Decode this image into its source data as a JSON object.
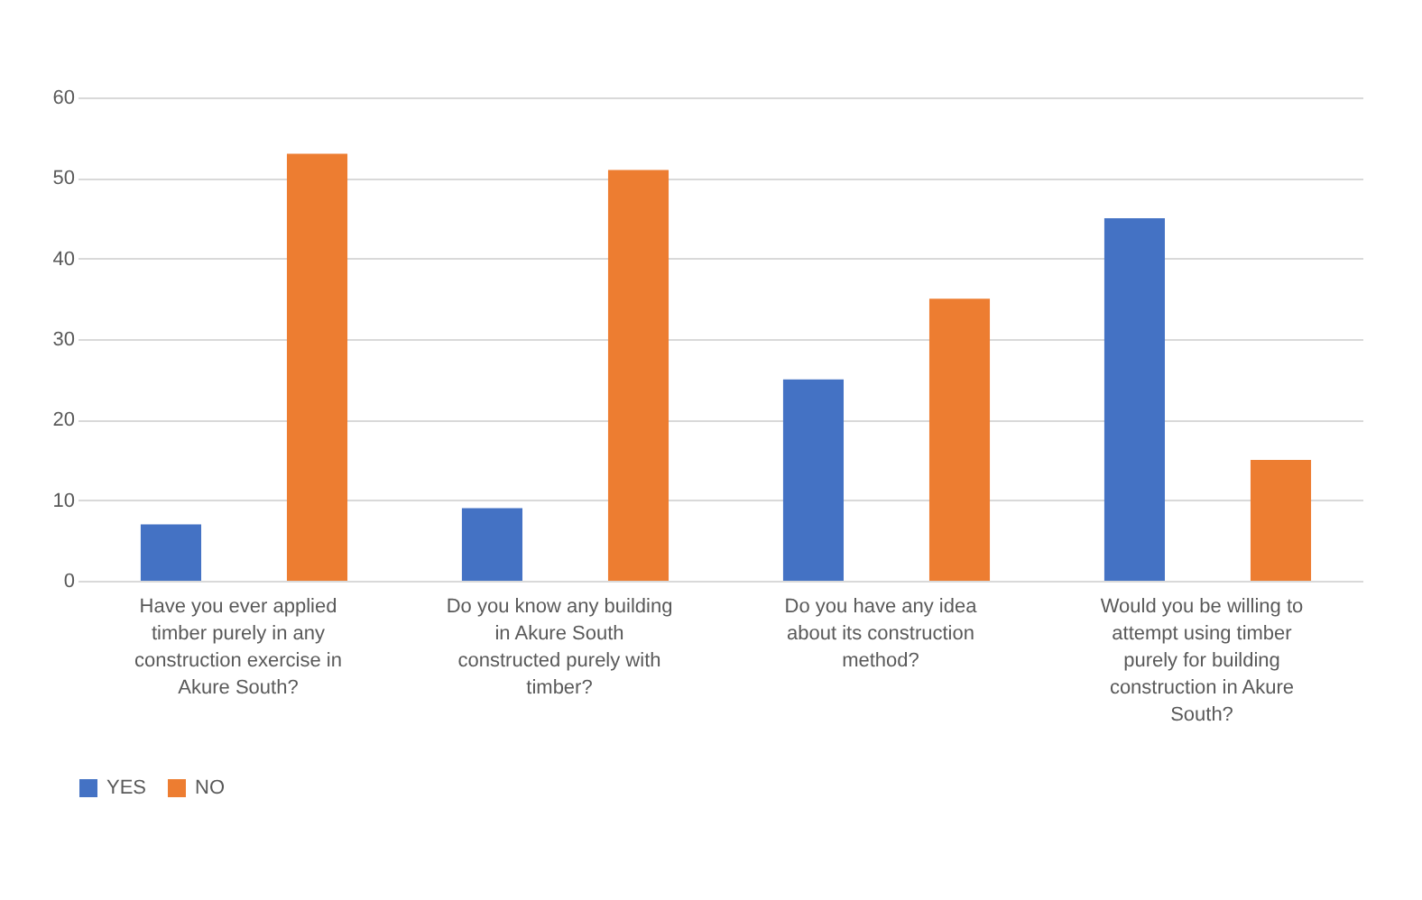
{
  "chart_data": {
    "type": "bar",
    "categories": [
      "Have you ever applied timber purely in any construction exercise in Akure South?",
      "Do you know any building in Akure South constructed purely with timber?",
      "Do you have any idea about its construction method?",
      "Would you be willing to attempt using timber purely for building construction in Akure South?"
    ],
    "series": [
      {
        "name": "YES",
        "color": "#4472c4",
        "values": [
          7,
          9,
          25,
          45
        ]
      },
      {
        "name": "NO",
        "color": "#ed7d31",
        "values": [
          53,
          51,
          35,
          15
        ]
      }
    ],
    "ylim": [
      0,
      60
    ],
    "yticks": [
      0,
      10,
      20,
      30,
      40,
      50,
      60
    ],
    "grid": "y",
    "legend": "bottom"
  }
}
